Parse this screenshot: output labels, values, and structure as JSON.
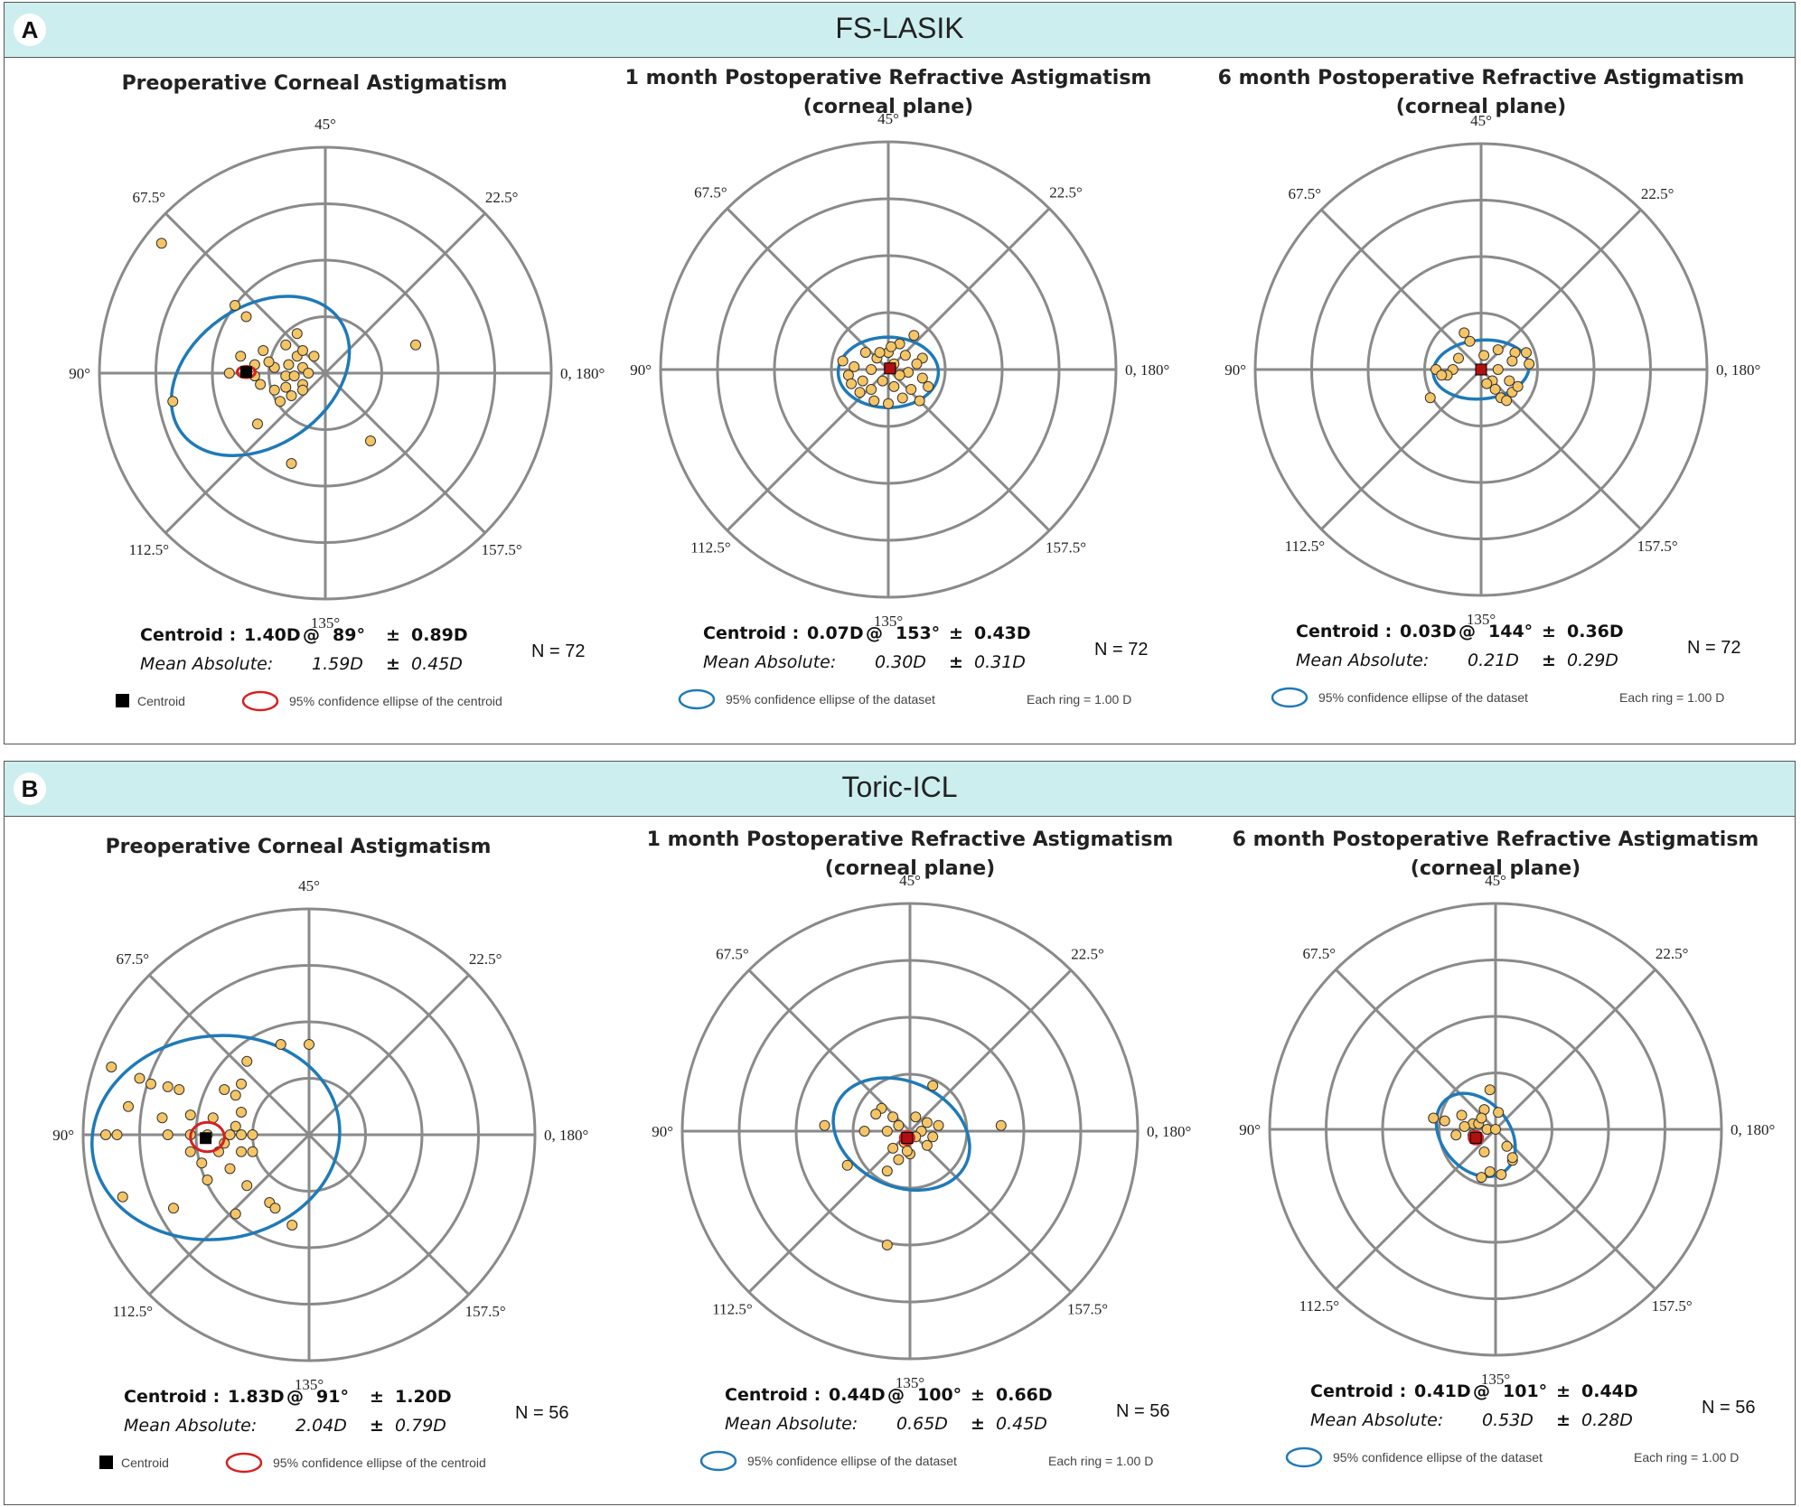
{
  "panels": [
    {
      "id": "A",
      "label": "A",
      "title": "FS-LASIK",
      "plots": [
        {
          "title": [
            "Preoperative Corneal Astigmatism"
          ],
          "centroid": {
            "label": "Centroid :",
            "magnitude": "1.40D",
            "at": "@",
            "axis": "89°",
            "pm": "±",
            "sd": "0.89D"
          },
          "mean_absolute": {
            "label": "Mean Absolute:",
            "value": "1.59D",
            "pm": "±",
            "sd": "0.45D"
          },
          "n": "N = 72",
          "legend": [
            {
              "type": "square",
              "text": "Centroid"
            },
            {
              "type": "red-ellipse",
              "text": "95% confidence ellipse of the centroid"
            }
          ]
        },
        {
          "title": [
            "1 month Postoperative Refractive Astigmatism",
            "(corneal plane)"
          ],
          "centroid": {
            "label": "Centroid :",
            "magnitude": "0.07D",
            "at": "@",
            "axis": "153°",
            "pm": "±",
            "sd": "0.43D"
          },
          "mean_absolute": {
            "label": "Mean Absolute:",
            "value": "0.30D",
            "pm": "±",
            "sd": "0.31D"
          },
          "n": "N = 72",
          "legend": [
            {
              "type": "blue-ellipse",
              "text": "95% confidence ellipse of the dataset"
            },
            {
              "type": "text",
              "text": "Each ring =     1.00   D"
            }
          ]
        },
        {
          "title": [
            "6 month Postoperative Refractive Astigmatism",
            "(corneal plane)"
          ],
          "centroid": {
            "label": "Centroid :",
            "magnitude": "0.03D",
            "at": "@",
            "axis": "144°",
            "pm": "±",
            "sd": "0.36D"
          },
          "mean_absolute": {
            "label": "Mean Absolute:",
            "value": "0.21D",
            "pm": "±",
            "sd": "0.29D"
          },
          "n": "N = 72",
          "legend": [
            {
              "type": "blue-ellipse",
              "text": "95% confidence ellipse of the dataset"
            },
            {
              "type": "text",
              "text": "Each ring =     1.00   D"
            }
          ]
        }
      ]
    },
    {
      "id": "B",
      "label": "B",
      "title": "Toric-ICL",
      "plots": [
        {
          "title": [
            "Preoperative Corneal Astigmatism"
          ],
          "centroid": {
            "label": "Centroid :",
            "magnitude": "1.83D",
            "at": "@",
            "axis": "91°",
            "pm": "±",
            "sd": "1.20D"
          },
          "mean_absolute": {
            "label": "Mean Absolute:",
            "value": "2.04D",
            "pm": "±",
            "sd": "0.79D"
          },
          "n": "N = 56",
          "legend": [
            {
              "type": "square",
              "text": "Centroid"
            },
            {
              "type": "red-ellipse",
              "text": "95% confidence ellipse of the centroid"
            }
          ]
        },
        {
          "title": [
            "1 month Postoperative Refractive Astigmatism",
            "(corneal plane)"
          ],
          "centroid": {
            "label": "Centroid :",
            "magnitude": "0.44D",
            "at": "@",
            "axis": "100°",
            "pm": "±",
            "sd": "0.66D"
          },
          "mean_absolute": {
            "label": "Mean Absolute:",
            "value": "0.65D",
            "pm": "±",
            "sd": "0.45D"
          },
          "n": "N = 56",
          "legend": [
            {
              "type": "blue-ellipse",
              "text": "95% confidence ellipse of the dataset"
            },
            {
              "type": "text",
              "text": "Each ring =     1.00   D"
            }
          ]
        },
        {
          "title": [
            "6 month Postoperative Refractive Astigmatism",
            "(corneal plane)"
          ],
          "centroid": {
            "label": "Centroid :",
            "magnitude": "0.41D",
            "at": "@",
            "axis": "101°",
            "pm": "±",
            "sd": "0.44D"
          },
          "mean_absolute": {
            "label": "Mean Absolute:",
            "value": "0.53D",
            "pm": "±",
            "sd": "0.28D"
          },
          "n": "N = 56",
          "legend": [
            {
              "type": "blue-ellipse",
              "text": "95% confidence ellipse of the dataset"
            },
            {
              "type": "text",
              "text": "Each ring =     1.00   D"
            }
          ]
        }
      ]
    }
  ],
  "chart_data": [
    {
      "type": "scatter",
      "panel": "A",
      "title": "Preoperative Corneal Astigmatism",
      "rings_D": 4,
      "axis_labels": [
        "45°",
        "22.5°",
        "0, 180°",
        "157.5°",
        "135°",
        "112.5°",
        "90°",
        "67.5°"
      ],
      "points": [
        [
          -2.9,
          2.3
        ],
        [
          -1.6,
          1.2
        ],
        [
          -1.4,
          1.0
        ],
        [
          -0.5,
          0.7
        ],
        [
          -0.7,
          0.5
        ],
        [
          -1.5,
          0.3
        ],
        [
          -0.5,
          0.3
        ],
        [
          -0.2,
          0.3
        ],
        [
          -1.1,
          0.4
        ],
        [
          -0.4,
          0.4
        ],
        [
          -1.25,
          0.15
        ],
        [
          -0.9,
          0.1
        ],
        [
          -0.4,
          0.1
        ],
        [
          -0.3,
          0.0
        ],
        [
          -1.7,
          0.0
        ],
        [
          -1.25,
          -0.05
        ],
        [
          -0.7,
          -0.05
        ],
        [
          -0.4,
          -0.2
        ],
        [
          -0.7,
          -0.25
        ],
        [
          -0.4,
          -0.3
        ],
        [
          -0.9,
          -0.3
        ],
        [
          -0.6,
          -0.4
        ],
        [
          -2.7,
          -0.5
        ],
        [
          -0.8,
          -0.5
        ],
        [
          -1.0,
          0.2
        ],
        [
          -0.65,
          0.15
        ],
        [
          -0.55,
          -0.05
        ],
        [
          -1.15,
          -0.2
        ],
        [
          1.6,
          0.5
        ],
        [
          -1.2,
          -0.9
        ],
        [
          0.8,
          -1.2
        ],
        [
          -0.6,
          -1.6
        ]
      ],
      "centroid": [
        -1.4,
        0.02
      ],
      "centroid_ellipse": {
        "cx": -1.4,
        "cy": 0.02,
        "rx": 0.16,
        "ry": 0.1,
        "angle": 0
      },
      "dataset_ellipse": {
        "cx": -1.15,
        "cy": -0.05,
        "rx": 1.72,
        "ry": 1.23,
        "angle": -35
      }
    },
    {
      "type": "scatter",
      "panel": "A",
      "title": "1 month Postoperative Refractive Astigmatism (corneal plane)",
      "rings_D": 4,
      "axis_labels": [
        "45°",
        "22.5°",
        "0, 180°",
        "157.5°",
        "135°",
        "112.5°",
        "90°",
        "67.5°"
      ],
      "points": [
        [
          0.0,
          0.3
        ],
        [
          0.45,
          0.6
        ],
        [
          0.2,
          0.45
        ],
        [
          -0.4,
          0.3
        ],
        [
          -0.2,
          0.2
        ],
        [
          0.3,
          0.25
        ],
        [
          0.6,
          0.2
        ],
        [
          -0.8,
          0.15
        ],
        [
          0.5,
          0.1
        ],
        [
          -0.6,
          0.05
        ],
        [
          0.1,
          0.1
        ],
        [
          -0.3,
          0.0
        ],
        [
          0.35,
          -0.05
        ],
        [
          -0.7,
          -0.1
        ],
        [
          0.2,
          -0.1
        ],
        [
          -0.45,
          -0.2
        ],
        [
          0.6,
          -0.15
        ],
        [
          -0.1,
          -0.2
        ],
        [
          0.1,
          -0.3
        ],
        [
          -0.3,
          -0.35
        ],
        [
          0.4,
          -0.35
        ],
        [
          -0.5,
          -0.4
        ],
        [
          0.0,
          -0.6
        ],
        [
          0.55,
          -0.55
        ],
        [
          -0.25,
          -0.55
        ],
        [
          0.25,
          -0.5
        ],
        [
          0.7,
          -0.3
        ],
        [
          -0.65,
          -0.25
        ],
        [
          0.05,
          0.4
        ],
        [
          -0.15,
          0.3
        ]
      ],
      "centroid": [
        0.03,
        0.02
      ],
      "centroid_ellipse": {
        "cx": 0.03,
        "cy": 0.02,
        "rx": 0.09,
        "ry": 0.08,
        "angle": 0
      },
      "dataset_ellipse": {
        "cx": 0.0,
        "cy": -0.05,
        "rx": 0.88,
        "ry": 0.62,
        "angle": 0
      }
    },
    {
      "type": "scatter",
      "panel": "A",
      "title": "6 month Postoperative Refractive Astigmatism (corneal plane)",
      "rings_D": 4,
      "axis_labels": [
        "45°",
        "22.5°",
        "0, 180°",
        "157.5°",
        "135°",
        "112.5°",
        "90°",
        "67.5°"
      ],
      "points": [
        [
          -0.3,
          0.65
        ],
        [
          -0.2,
          0.5
        ],
        [
          0.3,
          0.35
        ],
        [
          0.6,
          0.3
        ],
        [
          0.8,
          0.3
        ],
        [
          -0.4,
          0.2
        ],
        [
          0.55,
          0.15
        ],
        [
          -0.8,
          0.0
        ],
        [
          -0.5,
          0.0
        ],
        [
          0.85,
          0.1
        ],
        [
          0.3,
          0.0
        ],
        [
          -0.6,
          -0.1
        ],
        [
          0.2,
          -0.2
        ],
        [
          0.5,
          -0.2
        ],
        [
          0.25,
          -0.35
        ],
        [
          0.55,
          -0.4
        ],
        [
          0.35,
          -0.5
        ],
        [
          0.1,
          -0.25
        ],
        [
          -0.9,
          -0.5
        ],
        [
          0.45,
          -0.55
        ],
        [
          0.65,
          -0.3
        ],
        [
          -0.7,
          -0.1
        ],
        [
          0.05,
          0.25
        ]
      ],
      "centroid": [
        0.0,
        0.0
      ],
      "centroid_ellipse": {
        "cx": 0.0,
        "cy": 0.0,
        "rx": 0.08,
        "ry": 0.07,
        "angle": 0
      },
      "dataset_ellipse": {
        "cx": 0.0,
        "cy": 0.0,
        "rx": 0.85,
        "ry": 0.52,
        "angle": -5
      }
    },
    {
      "type": "scatter",
      "panel": "B",
      "title": "Preoperative Corneal Astigmatism",
      "rings_D": 4,
      "axis_labels": [
        "45°",
        "22.5°",
        "0, 180°",
        "157.5°",
        "135°",
        "112.5°",
        "90°",
        "67.5°"
      ],
      "points": [
        [
          -3.5,
          1.2
        ],
        [
          -3.0,
          1.0
        ],
        [
          -2.8,
          0.9
        ],
        [
          -2.5,
          0.85
        ],
        [
          -2.3,
          0.8
        ],
        [
          -3.2,
          0.5
        ],
        [
          -2.6,
          0.3
        ],
        [
          -2.1,
          0.35
        ],
        [
          -1.2,
          0.9
        ],
        [
          -1.5,
          0.8
        ],
        [
          -1.2,
          0.4
        ],
        [
          -1.3,
          0.7
        ],
        [
          -0.5,
          1.6
        ],
        [
          -1.1,
          1.3
        ],
        [
          0.0,
          1.6
        ],
        [
          -3.6,
          0.0
        ],
        [
          -3.4,
          0.0
        ],
        [
          -2.5,
          0.0
        ],
        [
          -2.1,
          0.0
        ],
        [
          -1.8,
          0.0
        ],
        [
          -1.4,
          0.0
        ],
        [
          -1.2,
          0.0
        ],
        [
          -1.0,
          0.0
        ],
        [
          -1.6,
          -0.3
        ],
        [
          -2.1,
          -0.3
        ],
        [
          -1.9,
          -0.5
        ],
        [
          -1.2,
          -0.3
        ],
        [
          -1.0,
          -0.3
        ],
        [
          -1.4,
          -0.6
        ],
        [
          -1.1,
          -0.9
        ],
        [
          -1.8,
          -0.8
        ],
        [
          -2.4,
          -1.3
        ],
        [
          -1.3,
          -1.4
        ],
        [
          -0.7,
          -1.2
        ],
        [
          -0.6,
          -1.3
        ],
        [
          -3.3,
          -1.1
        ],
        [
          -0.3,
          -1.6
        ],
        [
          -1.7,
          0.3
        ],
        [
          -1.3,
          0.15
        ],
        [
          -1.5,
          -0.15
        ]
      ],
      "centroid": [
        -1.83,
        -0.06
      ],
      "centroid_ellipse": {
        "cx": -1.8,
        "cy": -0.04,
        "rx": 0.3,
        "ry": 0.26,
        "angle": 0
      },
      "dataset_ellipse": {
        "cx": -1.65,
        "cy": -0.05,
        "rx": 2.2,
        "ry": 1.8,
        "angle": -8
      }
    },
    {
      "type": "scatter",
      "panel": "B",
      "title": "1 month Postoperative Refractive Astigmatism (corneal plane)",
      "rings_D": 4,
      "axis_labels": [
        "45°",
        "22.5°",
        "0, 180°",
        "157.5°",
        "135°",
        "112.5°",
        "90°",
        "67.5°"
      ],
      "points": [
        [
          0.4,
          0.8
        ],
        [
          -0.5,
          0.4
        ],
        [
          -0.3,
          0.25
        ],
        [
          0.1,
          0.25
        ],
        [
          0.3,
          0.15
        ],
        [
          -0.2,
          0.1
        ],
        [
          0.5,
          0.1
        ],
        [
          1.6,
          0.1
        ],
        [
          -1.5,
          0.1
        ],
        [
          -0.8,
          0.0
        ],
        [
          -0.4,
          0.0
        ],
        [
          0.2,
          0.0
        ],
        [
          0.4,
          -0.1
        ],
        [
          -0.1,
          -0.2
        ],
        [
          0.3,
          -0.25
        ],
        [
          -0.3,
          -0.3
        ],
        [
          0.0,
          -0.4
        ],
        [
          -0.2,
          -0.5
        ],
        [
          -1.1,
          -0.6
        ],
        [
          -0.4,
          -0.7
        ],
        [
          -0.4,
          -2.0
        ],
        [
          -0.6,
          0.3
        ],
        [
          0.1,
          -0.1
        ],
        [
          -0.05,
          -0.35
        ]
      ],
      "centroid": [
        -0.05,
        -0.12
      ],
      "centroid_ellipse": {
        "cx": -0.05,
        "cy": -0.12,
        "rx": 0.12,
        "ry": 0.11,
        "angle": 0
      },
      "dataset_ellipse": {
        "cx": -0.15,
        "cy": -0.05,
        "rx": 1.25,
        "ry": 0.92,
        "angle": 25
      }
    },
    {
      "type": "scatter",
      "panel": "B",
      "title": "6 month Postoperative Refractive Astigmatism (corneal plane)",
      "rings_D": 4,
      "axis_labels": [
        "45°",
        "22.5°",
        "0, 180°",
        "157.5°",
        "135°",
        "112.5°",
        "90°",
        "67.5°"
      ],
      "points": [
        [
          -0.1,
          0.7
        ],
        [
          -0.2,
          0.35
        ],
        [
          -0.6,
          0.25
        ],
        [
          -1.1,
          0.2
        ],
        [
          -0.9,
          0.15
        ],
        [
          -0.4,
          0.1
        ],
        [
          -0.3,
          0.1
        ],
        [
          -0.15,
          0.0
        ],
        [
          -0.7,
          -0.1
        ],
        [
          0.0,
          0.0
        ],
        [
          -0.4,
          -0.1
        ],
        [
          0.2,
          -0.3
        ],
        [
          -0.2,
          -0.4
        ],
        [
          0.3,
          -0.55
        ],
        [
          -0.1,
          -0.75
        ],
        [
          0.1,
          -0.8
        ],
        [
          -0.25,
          -0.85
        ],
        [
          0.3,
          -0.5
        ],
        [
          -0.55,
          0.05
        ],
        [
          -0.25,
          0.2
        ],
        [
          0.05,
          0.3
        ]
      ],
      "centroid": [
        -0.35,
        -0.15
      ],
      "centroid_ellipse": {
        "cx": -0.35,
        "cy": -0.15,
        "rx": 0.12,
        "ry": 0.11,
        "angle": 0
      },
      "dataset_ellipse": {
        "cx": -0.35,
        "cy": -0.1,
        "rx": 0.82,
        "ry": 0.6,
        "angle": 50
      }
    }
  ]
}
